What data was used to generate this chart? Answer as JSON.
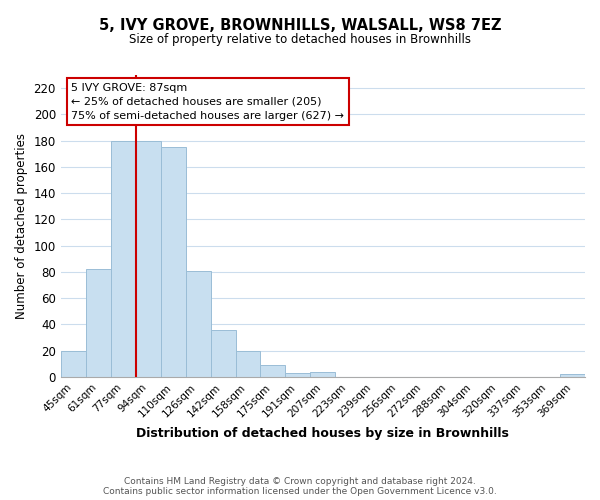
{
  "title": "5, IVY GROVE, BROWNHILLS, WALSALL, WS8 7EZ",
  "subtitle": "Size of property relative to detached houses in Brownhills",
  "xlabel": "Distribution of detached houses by size in Brownhills",
  "ylabel": "Number of detached properties",
  "bar_labels": [
    "45sqm",
    "61sqm",
    "77sqm",
    "94sqm",
    "110sqm",
    "126sqm",
    "142sqm",
    "158sqm",
    "175sqm",
    "191sqm",
    "207sqm",
    "223sqm",
    "239sqm",
    "256sqm",
    "272sqm",
    "288sqm",
    "304sqm",
    "320sqm",
    "337sqm",
    "353sqm",
    "369sqm"
  ],
  "bar_heights": [
    20,
    82,
    180,
    180,
    175,
    81,
    36,
    20,
    9,
    3,
    4,
    0,
    0,
    0,
    0,
    0,
    0,
    0,
    0,
    0,
    2
  ],
  "bar_color": "#c8dff0",
  "bar_edge_color": "#9abdd6",
  "highlight_line_color": "#cc0000",
  "ylim": [
    0,
    230
  ],
  "yticks": [
    0,
    20,
    40,
    60,
    80,
    100,
    120,
    140,
    160,
    180,
    200,
    220
  ],
  "annotation_title": "5 IVY GROVE: 87sqm",
  "annotation_line1": "← 25% of detached houses are smaller (205)",
  "annotation_line2": "75% of semi-detached houses are larger (627) →",
  "annotation_box_color": "#ffffff",
  "annotation_box_edge": "#cc0000",
  "footer1": "Contains HM Land Registry data © Crown copyright and database right 2024.",
  "footer2": "Contains public sector information licensed under the Open Government Licence v3.0.",
  "background_color": "#ffffff",
  "grid_color": "#ccdded"
}
